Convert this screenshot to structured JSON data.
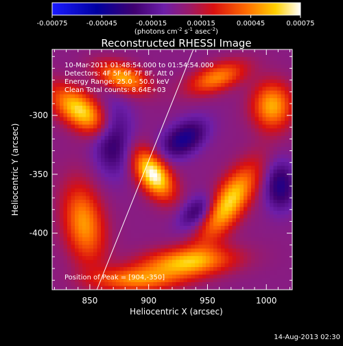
{
  "chart_data": {
    "type": "heatmap",
    "title": "Reconstructed RHESSI Image",
    "xlabel": "Heliocentric X (arcsec)",
    "ylabel": "Heliocentric Y (arcsec)",
    "xlim": [
      818,
      1022
    ],
    "ylim": [
      -448,
      -244
    ],
    "xticks": [
      850,
      900,
      950,
      1000
    ],
    "yticks": [
      -300,
      -350,
      -400
    ],
    "colorbar": {
      "range": [
        -0.00075,
        0.00075
      ],
      "ticks": [
        "-0.00075",
        "-0.00045",
        "-0.00015",
        "0.00015",
        "0.00045",
        "0.00075"
      ],
      "units_text": "(photons cm",
      "units_sup1": "-2",
      "units_mid": " s",
      "units_sup2": "-1",
      "units_end": " asec",
      "units_sup3": "-2",
      "units_close": ")"
    },
    "annotations": [
      "10-Mar-2011 01:48:54.000 to 01:54:54.000",
      "Detectors: 4F 5F 6F 7F 8F, Att 0",
      "Energy Range: 25.0 - 50.0 keV",
      "Clean     Total counts: 8.64E+03"
    ],
    "peak_text": "Position of Peak = [904,-350]",
    "limb_line": [
      [
        856,
        -448
      ],
      [
        938,
        -244
      ]
    ],
    "sources": [
      {
        "x": 904,
        "y": -350,
        "sx": 9,
        "sy": 16,
        "theta": 35,
        "amp": 1.0
      },
      {
        "x": 842,
        "y": -296,
        "sx": 20,
        "sy": 10,
        "theta": -35,
        "amp": 0.85
      },
      {
        "x": 878,
        "y": -268,
        "sx": 16,
        "sy": 8,
        "theta": -20,
        "amp": 0.7
      },
      {
        "x": 968,
        "y": -374,
        "sx": 26,
        "sy": 10,
        "theta": 55,
        "amp": 0.85
      },
      {
        "x": 932,
        "y": -425,
        "sx": 28,
        "sy": 9,
        "theta": 5,
        "amp": 0.75
      },
      {
        "x": 845,
        "y": -392,
        "sx": 12,
        "sy": 24,
        "theta": 10,
        "amp": 0.65
      },
      {
        "x": 1005,
        "y": -292,
        "sx": 12,
        "sy": 14,
        "theta": 0,
        "amp": 0.7
      },
      {
        "x": 888,
        "y": -440,
        "sx": 25,
        "sy": 7,
        "theta": 0,
        "amp": 0.55
      },
      {
        "x": 958,
        "y": -268,
        "sx": 18,
        "sy": 8,
        "theta": 20,
        "amp": 0.6
      },
      {
        "x": 930,
        "y": -320,
        "sx": 15,
        "sy": 9,
        "theta": 35,
        "amp": -0.55
      },
      {
        "x": 870,
        "y": -320,
        "sx": 11,
        "sy": 20,
        "theta": 0,
        "amp": -0.5
      },
      {
        "x": 942,
        "y": -382,
        "sx": 13,
        "sy": 8,
        "theta": 40,
        "amp": -0.45
      },
      {
        "x": 1012,
        "y": -360,
        "sx": 9,
        "sy": 14,
        "theta": 0,
        "amp": -0.5
      }
    ]
  },
  "footer": {
    "timestamp": "14-Aug-2013 02:30"
  }
}
